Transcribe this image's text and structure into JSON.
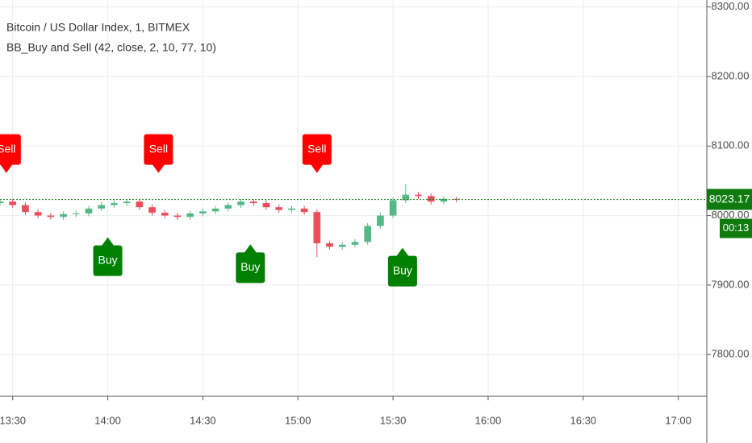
{
  "chart_data": {
    "type": "candlestick",
    "title": "Bitcoin / US Dollar Index, 1, BITMEX",
    "subtitle": "BB_Buy and Sell (42, close, 2, 10, 77, 10)",
    "x": [
      "13:26",
      "13:30",
      "13:34",
      "13:38",
      "13:42",
      "13:46",
      "13:50",
      "13:54",
      "13:58",
      "14:02",
      "14:06",
      "14:10",
      "14:14",
      "14:18",
      "14:22",
      "14:26",
      "14:30",
      "14:34",
      "14:38",
      "14:42",
      "14:46",
      "14:50",
      "14:54",
      "14:58",
      "15:02",
      "15:06",
      "15:10",
      "15:14",
      "15:18",
      "15:22",
      "15:26",
      "15:30",
      "15:34",
      "15:38",
      "15:42",
      "15:46",
      "15:50"
    ],
    "open": [
      8018,
      8020,
      8015,
      8005,
      8000,
      7998,
      8002,
      8003,
      8010,
      8015,
      8018,
      8020,
      8012,
      8004,
      8000,
      7998,
      8003,
      8006,
      8010,
      8015,
      8020,
      8018,
      8012,
      8008,
      8010,
      8005,
      7960,
      7955,
      7958,
      7962,
      7985,
      8000,
      8022,
      8030,
      8028,
      8020,
      8024
    ],
    "high": [
      8024,
      8024,
      8019,
      8009,
      8004,
      8006,
      8007,
      8014,
      8019,
      8022,
      8024,
      8024,
      8016,
      8008,
      8004,
      8007,
      8010,
      8014,
      8019,
      8024,
      8024,
      8022,
      8016,
      8014,
      8014,
      8009,
      7964,
      7962,
      7966,
      7989,
      8004,
      8026,
      8045,
      8034,
      8032,
      8028,
      8027
    ],
    "low": [
      8014,
      8011,
      8001,
      7996,
      7994,
      7994,
      7998,
      7999,
      8006,
      8011,
      8014,
      8008,
      8000,
      7996,
      7994,
      7994,
      7999,
      8002,
      8006,
      8011,
      8014,
      8008,
      8004,
      8004,
      8001,
      7940,
      7951,
      7951,
      7954,
      7958,
      7981,
      7996,
      8018,
      8024,
      8016,
      8016,
      8019
    ],
    "close": [
      8020,
      8015,
      8005,
      8000,
      7998,
      8002,
      8003,
      8010,
      8015,
      8018,
      8020,
      8012,
      8004,
      8000,
      7998,
      8003,
      8006,
      8010,
      8015,
      8020,
      8018,
      8012,
      8008,
      8010,
      8005,
      7960,
      7955,
      7958,
      7962,
      7985,
      8000,
      8022,
      8030,
      8028,
      8020,
      8024,
      8023
    ],
    "up_color": "#53b987",
    "down_color": "#eb4d5c",
    "signals": [
      {
        "label": "Sell",
        "time": "13:28",
        "price": 8095,
        "color": "#ff0000"
      },
      {
        "label": "Buy",
        "time": "14:00",
        "price": 7935,
        "color": "#008000"
      },
      {
        "label": "Sell",
        "time": "14:16",
        "price": 8095,
        "color": "#ff0000"
      },
      {
        "label": "Buy",
        "time": "14:45",
        "price": 7925,
        "color": "#008000"
      },
      {
        "label": "Sell",
        "time": "15:06",
        "price": 8095,
        "color": "#ff0000"
      },
      {
        "label": "Buy",
        "time": "15:33",
        "price": 7920,
        "color": "#008000"
      }
    ],
    "last_price": 8023.17,
    "countdown": "00:13",
    "price_label_color": "#0f7b0f",
    "xlim": [
      "13:26",
      "17:09"
    ],
    "xticks": [
      "13:30",
      "14:00",
      "14:30",
      "15:00",
      "15:30",
      "16:00",
      "16:30",
      "17:00"
    ],
    "ylim": [
      7740,
      8310
    ],
    "yticks": [
      {
        "value": 7800,
        "label": "7800.00"
      },
      {
        "value": 7900,
        "label": "7900.00"
      },
      {
        "value": 8000,
        "label": "8000.00"
      },
      {
        "value": 8100,
        "label": "8100.00"
      },
      {
        "value": 8200,
        "label": "8200.00"
      },
      {
        "value": 8300,
        "label": "8300.00"
      }
    ],
    "grid": true
  }
}
